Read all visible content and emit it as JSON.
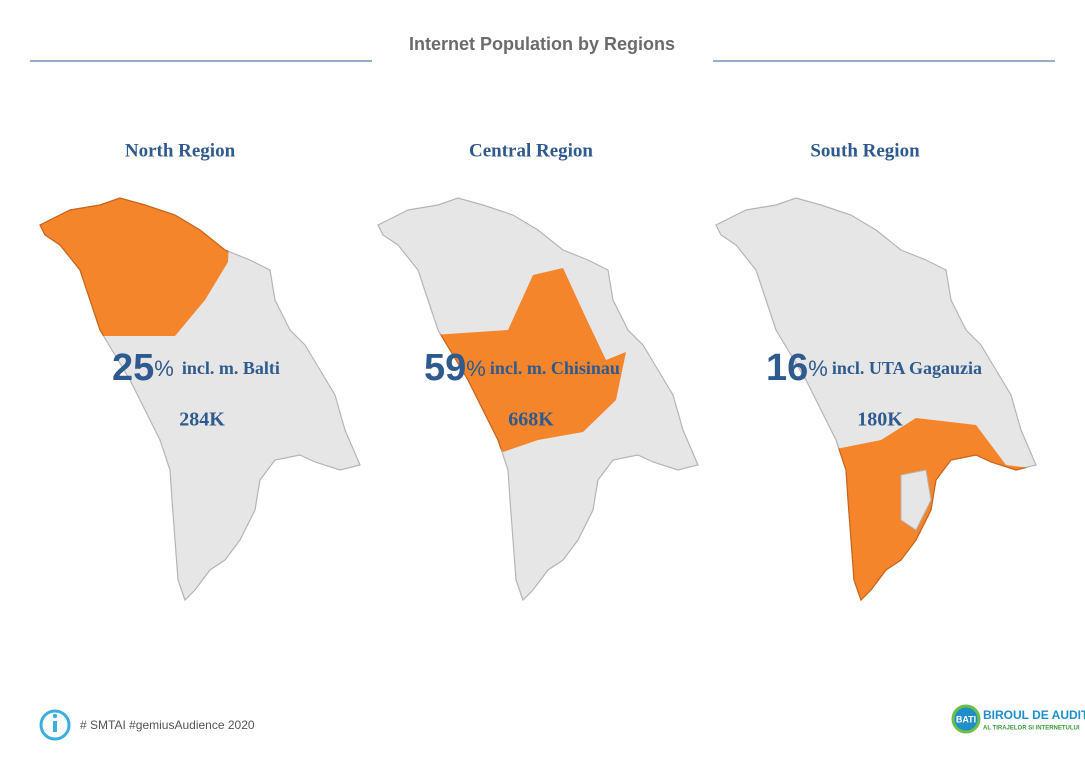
{
  "header": {
    "title": "Internet Population by Regions"
  },
  "regions": [
    {
      "name": "North Region",
      "share": "25",
      "share_unit": "%",
      "note": "incl. m. Balti",
      "value": "284K"
    },
    {
      "name": "Central Region",
      "share": "59",
      "share_unit": "%",
      "note": "incl. m. Chisinau",
      "value": "668K"
    },
    {
      "name": "South Region",
      "share": "16",
      "share_unit": "%",
      "note": "incl. UTA Gagauzia",
      "value": "180K"
    }
  ],
  "footer": {
    "source": "# SMTAI #gemiusAudience 2020",
    "logo_mark": "BATI",
    "logo_title": "BIROUL DE AUDIT",
    "logo_subtitle": "AL TIRAJELOR SI INTERNETULUI"
  }
}
